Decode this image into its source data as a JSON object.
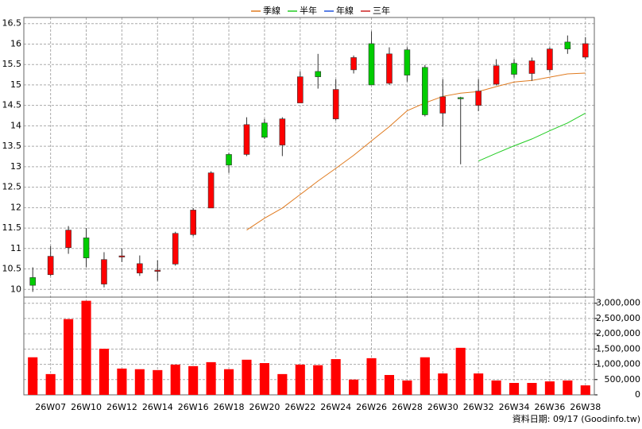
{
  "chart_data": {
    "type": "candlestick",
    "categories": [
      null,
      "26W07",
      null,
      "26W10",
      null,
      "26W12",
      null,
      "26W14",
      null,
      "26W16",
      null,
      "26W18",
      null,
      "26W20",
      null,
      "26W22",
      null,
      "26W24",
      null,
      "26W26",
      null,
      "26W28",
      null,
      "26W30",
      null,
      "26W32",
      null,
      "26W34",
      null,
      "26W36",
      null,
      "26W38"
    ],
    "open": [
      10.29,
      10.36,
      11.02,
      11.26,
      10.13,
      10.8,
      10.4,
      10.45,
      10.62,
      11.34,
      11.99,
      13.3,
      13.3,
      14.07,
      13.53,
      14.56,
      15.33,
      14.17,
      15.37,
      16.01,
      15.04,
      15.86,
      15.43,
      14.31,
      14.69,
      14.5,
      15.02,
      15.53,
      15.28,
      15.37,
      16.05,
      15.68
    ],
    "high": [
      10.54,
      11.06,
      11.55,
      11.5,
      10.91,
      11.0,
      10.83,
      10.71,
      11.41,
      11.99,
      12.89,
      13.34,
      14.21,
      14.17,
      14.21,
      15.33,
      15.76,
      15.14,
      15.72,
      16.31,
      15.92,
      15.92,
      15.49,
      15.14,
      14.71,
      15.14,
      15.63,
      15.63,
      15.67,
      15.92,
      16.21,
      16.17
    ],
    "low": [
      9.94,
      10.33,
      10.87,
      10.54,
      10.05,
      10.67,
      10.33,
      10.21,
      10.58,
      11.3,
      11.99,
      12.85,
      13.26,
      13.68,
      13.26,
      14.56,
      14.91,
      14.13,
      15.28,
      15.0,
      15.0,
      15.08,
      14.23,
      13.98,
      13.06,
      14.36,
      14.99,
      15.18,
      15.1,
      15.3,
      15.76,
      15.63
    ],
    "close": [
      10.1,
      10.81,
      11.45,
      10.77,
      10.73,
      10.82,
      10.63,
      10.47,
      11.37,
      11.94,
      12.85,
      13.04,
      14.03,
      13.72,
      14.17,
      15.2,
      15.2,
      14.89,
      15.67,
      15.0,
      15.76,
      15.24,
      14.27,
      14.71,
      14.67,
      14.85,
      15.47,
      15.26,
      15.59,
      15.88,
      15.88,
      16.01
    ],
    "up_color": "#ff0000",
    "down_color": "#00cc00",
    "series": [
      {
        "name": "季線",
        "color": "#e07b20",
        "values": [
          null,
          null,
          null,
          null,
          null,
          null,
          null,
          null,
          null,
          null,
          null,
          null,
          11.45,
          11.74,
          11.99,
          12.32,
          12.65,
          12.96,
          13.28,
          13.63,
          13.98,
          14.37,
          14.56,
          14.72,
          14.8,
          14.84,
          14.96,
          15.07,
          15.11,
          15.19,
          15.27,
          15.29
        ]
      },
      {
        "name": "半年",
        "color": "#22cc22",
        "values": [
          null,
          null,
          null,
          null,
          null,
          null,
          null,
          null,
          null,
          null,
          null,
          null,
          null,
          null,
          null,
          null,
          null,
          null,
          null,
          null,
          null,
          null,
          null,
          null,
          null,
          13.14,
          13.33,
          13.51,
          13.68,
          13.88,
          14.07,
          14.31
        ]
      },
      {
        "name": "年線",
        "color": "#2255dd",
        "values": [
          null,
          null,
          null,
          null,
          null,
          null,
          null,
          null,
          null,
          null,
          null,
          null,
          null,
          null,
          null,
          null,
          null,
          null,
          null,
          null,
          null,
          null,
          null,
          null,
          null,
          null,
          null,
          null,
          null,
          null,
          null,
          null
        ]
      },
      {
        "name": "三年",
        "color": "#cc2222",
        "values": [
          null,
          null,
          null,
          null,
          null,
          null,
          null,
          null,
          null,
          null,
          null,
          null,
          null,
          null,
          null,
          null,
          null,
          null,
          null,
          null,
          null,
          null,
          null,
          null,
          null,
          null,
          null,
          null,
          null,
          null,
          null,
          null
        ]
      }
    ],
    "ylim": [
      9.85,
      16.65
    ],
    "yticks": [
      10,
      10.5,
      11,
      11.5,
      12,
      12.5,
      13,
      13.5,
      14,
      14.5,
      15,
      15.5,
      16,
      16.5
    ],
    "grid": true,
    "volume": {
      "color": "#ff0000",
      "values": [
        1230000,
        680000,
        2480000,
        3080000,
        1510000,
        860000,
        840000,
        810000,
        990000,
        940000,
        1070000,
        840000,
        1150000,
        1040000,
        680000,
        990000,
        970000,
        1170000,
        500000,
        1200000,
        650000,
        470000,
        1230000,
        700000,
        1540000,
        700000,
        470000,
        390000,
        390000,
        440000,
        470000,
        310000
      ],
      "ylim": [
        0,
        3200000
      ],
      "yticks": [
        0,
        {
          "value": 500000,
          "label": "500,000"
        },
        {
          "value": 1000000,
          "label": "1,000,000"
        },
        {
          "value": 1500000,
          "label": "1,500,000"
        },
        {
          "value": 2000000,
          "label": "2,000,000"
        },
        {
          "value": 2500000,
          "label": "2,500,000"
        },
        {
          "value": 3000000,
          "label": "3,000,000"
        }
      ]
    },
    "footer": "資料日期: 09/17 (Goodinfo.tw)"
  }
}
